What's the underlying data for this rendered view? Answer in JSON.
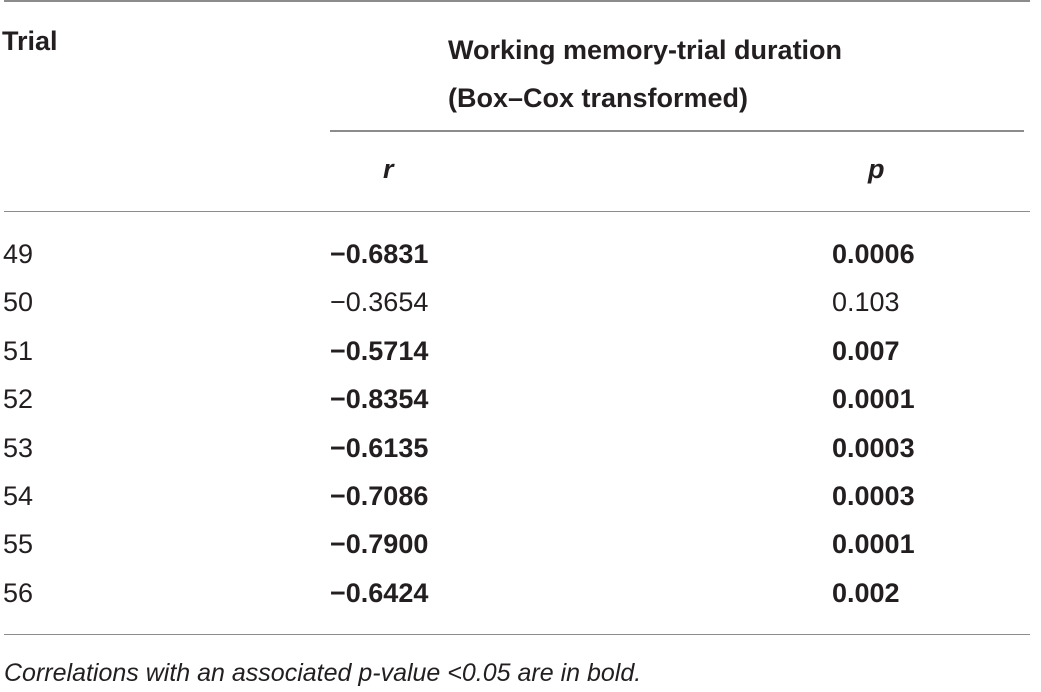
{
  "header": {
    "trial": "Trial",
    "group_line1": "Working memory-trial duration",
    "group_line2": "(Box–Cox transformed)",
    "r": "r",
    "p": "p"
  },
  "rows": [
    {
      "trial": "49",
      "r": "−0.6831",
      "p": "0.0006",
      "bold": true
    },
    {
      "trial": "50",
      "r": "−0.3654",
      "p": "0.103",
      "bold": false
    },
    {
      "trial": "51",
      "r": "−0.5714",
      "p": "0.007",
      "bold": true
    },
    {
      "trial": "52",
      "r": "−0.8354",
      "p": "0.0001",
      "bold": true
    },
    {
      "trial": "53",
      "r": "−0.6135",
      "p": "0.0003",
      "bold": true
    },
    {
      "trial": "54",
      "r": "−0.7086",
      "p": "0.0003",
      "bold": true
    },
    {
      "trial": "55",
      "r": "−0.7900",
      "p": "0.0001",
      "bold": true
    },
    {
      "trial": "56",
      "r": "−0.6424",
      "p": "0.002",
      "bold": true
    }
  ],
  "footnote": "Correlations with an associated p-value <0.05 are in bold."
}
